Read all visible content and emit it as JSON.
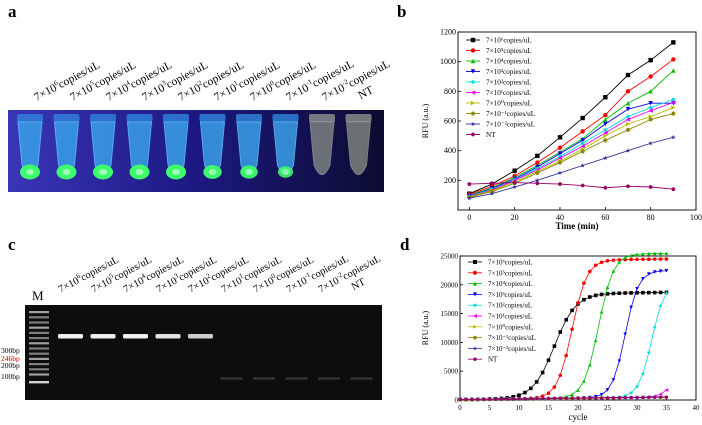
{
  "panels": {
    "a": "a",
    "b": "b",
    "c": "c",
    "d": "d"
  },
  "colors": {
    "s1": "#000000",
    "s2": "#ff0000",
    "s3": "#00bb00",
    "s4": "#0000ee",
    "s5": "#00dddd",
    "s6": "#ee00ee",
    "s7": "#bbbb00",
    "s8": "#888800",
    "s9": "#333399",
    "s10": "#990066"
  },
  "tube_labels": [
    {
      "base": "7×10",
      "exp": "6",
      "unit": "copies/uL"
    },
    {
      "base": "7×10",
      "exp": "5",
      "unit": "copies/uL"
    },
    {
      "base": "7×10",
      "exp": "4",
      "unit": "copies/uL"
    },
    {
      "base": "7×10",
      "exp": "3",
      "unit": "copies/uL"
    },
    {
      "base": "7×10",
      "exp": "2",
      "unit": "copies/uL"
    },
    {
      "base": "7×10",
      "exp": "1",
      "unit": "copies/uL"
    },
    {
      "base": "7×10",
      "exp": "0",
      "unit": "copies/uL"
    },
    {
      "base": "7×10",
      "exp": "-1",
      "unit": "copies/uL"
    },
    {
      "base": "7×10",
      "exp": "-2",
      "unit": "copies/uL"
    },
    {
      "base": "NT",
      "exp": "",
      "unit": ""
    }
  ],
  "tube_fluorescence": [
    1.0,
    1.0,
    1.0,
    1.0,
    1.0,
    0.9,
    0.85,
    0.7,
    0.0,
    0.0
  ],
  "gel_labels": [
    {
      "base": "7×10",
      "exp": "6",
      "unit": "copies/uL"
    },
    {
      "base": "7×10",
      "exp": "5",
      "unit": "copies/uL"
    },
    {
      "base": "7×10",
      "exp": "4",
      "unit": "copies/uL"
    },
    {
      "base": "7×10",
      "exp": "3",
      "unit": "copies/uL"
    },
    {
      "base": "7×10",
      "exp": "2",
      "unit": "copies/uL"
    },
    {
      "base": "7×10",
      "exp": "1",
      "unit": "copies/uL"
    },
    {
      "base": "7×10",
      "exp": "0",
      "unit": "copies/uL"
    },
    {
      "base": "7×10",
      "exp": "-1",
      "unit": "copies/uL"
    },
    {
      "base": "7×10",
      "exp": "-2",
      "unit": "copies/uL"
    },
    {
      "base": "NT",
      "exp": "",
      "unit": ""
    }
  ],
  "gel": {
    "marker_label": "M",
    "bp_labels": [
      "300bp",
      "246bp",
      "200bp",
      "100bp"
    ],
    "bp_colors": [
      "#000000",
      "#cc0000",
      "#000000",
      "#000000"
    ],
    "band_intensity": [
      1.0,
      1.0,
      1.0,
      0.95,
      0.85,
      0.0,
      0.0,
      0.0,
      0.0,
      0.0
    ]
  },
  "chart_data": [
    {
      "type": "line",
      "panel": "b",
      "title": "",
      "xlabel": "Time (min)",
      "ylabel": "RFU (a.u.)",
      "xlim": [
        -5,
        100
      ],
      "ylim": [
        0,
        1200
      ],
      "xticks": [
        "0",
        "20",
        "40",
        "60",
        "80",
        "100"
      ],
      "yticks": [
        "200",
        "400",
        "600",
        "800",
        "1000",
        "1200"
      ],
      "x": [
        0,
        10,
        20,
        30,
        40,
        50,
        60,
        70,
        80,
        90
      ],
      "series": [
        {
          "name": "7×10⁶copies/uL",
          "marker": "square",
          "values": [
            110,
            175,
            265,
            365,
            490,
            620,
            760,
            910,
            1010,
            1130
          ]
        },
        {
          "name": "7×10⁵copies/uL",
          "marker": "circle",
          "values": [
            105,
            160,
            230,
            320,
            420,
            530,
            640,
            800,
            900,
            1015
          ]
        },
        {
          "name": "7×10⁴copies/uL",
          "marker": "triangle-up",
          "values": [
            100,
            150,
            220,
            300,
            390,
            480,
            610,
            720,
            800,
            940
          ]
        },
        {
          "name": "7×10³copies/uL",
          "marker": "triangle-down",
          "values": [
            95,
            145,
            210,
            290,
            380,
            470,
            580,
            680,
            720,
            720
          ]
        },
        {
          "name": "7×10²copies/uL",
          "marker": "diamond",
          "values": [
            92,
            140,
            205,
            280,
            360,
            450,
            540,
            630,
            690,
            745
          ]
        },
        {
          "name": "7×10¹copies/uL",
          "marker": "triangle-left",
          "values": [
            90,
            135,
            200,
            270,
            350,
            430,
            520,
            610,
            670,
            725
          ]
        },
        {
          "name": "7×10⁰copies/uL",
          "marker": "triangle-right",
          "values": [
            88,
            130,
            190,
            260,
            330,
            410,
            500,
            580,
            630,
            690
          ]
        },
        {
          "name": "7×10⁻¹copies/uL",
          "marker": "hexagon",
          "values": [
            85,
            125,
            180,
            250,
            320,
            395,
            470,
            540,
            610,
            650
          ]
        },
        {
          "name": "7×10⁻²copies/uL",
          "marker": "star",
          "values": [
            80,
            110,
            155,
            200,
            250,
            300,
            350,
            400,
            450,
            490
          ]
        },
        {
          "name": "NT",
          "marker": "pentagon",
          "values": [
            175,
            180,
            185,
            180,
            175,
            165,
            150,
            160,
            155,
            140
          ]
        }
      ]
    },
    {
      "type": "line",
      "panel": "d",
      "title": "",
      "xlabel": "cycle",
      "ylabel": "RFU (a.u.)",
      "xlim": [
        0,
        40
      ],
      "ylim": [
        0,
        25000
      ],
      "xticks": [
        "0",
        "5",
        "10",
        "15",
        "20",
        "25",
        "30",
        "35",
        "40"
      ],
      "yticks": [
        "0",
        "5000",
        "10000",
        "15000",
        "20000",
        "25000"
      ],
      "x": [
        0,
        1,
        2,
        3,
        4,
        5,
        6,
        7,
        8,
        9,
        10,
        11,
        12,
        13,
        14,
        15,
        16,
        17,
        18,
        19,
        20,
        21,
        22,
        23,
        24,
        25,
        26,
        27,
        28,
        29,
        30,
        31,
        32,
        33,
        34,
        35
      ],
      "series": [
        {
          "name": "7×10⁶copies/uL",
          "marker": "square",
          "start": 0,
          "mid": 16.0,
          "height": 18200,
          "rate": 0.55
        },
        {
          "name": "7×10⁵copies/uL",
          "marker": "circle",
          "start": 0,
          "mid": 19.0,
          "height": 24000,
          "rate": 0.8
        },
        {
          "name": "7×10⁴copies/uL",
          "marker": "triangle-up",
          "start": 0,
          "mid": 23.5,
          "height": 25000,
          "rate": 0.8
        },
        {
          "name": "7×10³copies/uL",
          "marker": "triangle-down",
          "start": 0,
          "mid": 28.0,
          "height": 22000,
          "rate": 0.9
        },
        {
          "name": "7×10²copies/uL",
          "marker": "diamond",
          "start": 0,
          "mid": 32.5,
          "height": 20000,
          "rate": 0.9
        },
        {
          "name": "7×10¹copies/uL",
          "marker": "triangle-left",
          "start": 0,
          "mid": 38.0,
          "height": 20000,
          "rate": 0.9
        },
        {
          "name": "7×10⁰copies/uL",
          "marker": "triangle-right",
          "start": 0,
          "mid": 60.0,
          "height": 0,
          "rate": 0.5
        },
        {
          "name": "7×10⁻¹copies/uL",
          "marker": "hexagon",
          "start": 0,
          "mid": 60.0,
          "height": 0,
          "rate": 0.5
        },
        {
          "name": "7×10⁻²copies/uL",
          "marker": "star",
          "start": 0,
          "mid": 60.0,
          "height": 0,
          "rate": 0.5
        },
        {
          "name": "NT",
          "marker": "pentagon",
          "start": 0,
          "mid": 60.0,
          "height": 0,
          "rate": 0.5
        }
      ]
    }
  ]
}
